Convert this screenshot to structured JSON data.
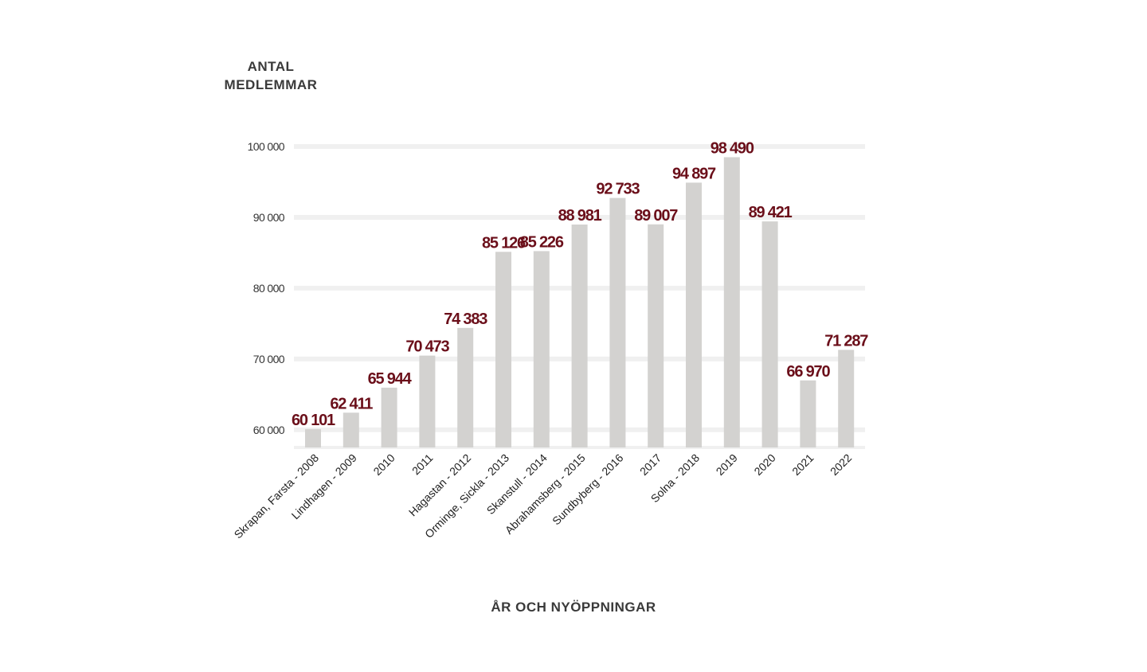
{
  "chart_data": {
    "type": "bar",
    "ylabel_lines": [
      "ANTAL",
      "MEDLEMMAR"
    ],
    "xlabel": "ÅR OCH NYÖPPNINGAR",
    "categories": [
      "Skrapan, Farsta - 2008",
      "Lindhagen - 2009",
      "2010",
      "2011",
      "Hagastan - 2012",
      "Orminge, Sickla - 2013",
      "Skanstull - 2014",
      "Abrahamsberg - 2015",
      "Sundbyberg - 2016",
      "2017",
      "Solna - 2018",
      "2019",
      "2020",
      "2021",
      "2022"
    ],
    "values": [
      60101,
      62411,
      65944,
      70473,
      74383,
      85126,
      85226,
      88981,
      92733,
      89007,
      94897,
      98490,
      89421,
      66970,
      71287
    ],
    "data_labels": [
      "60 101",
      "62 411",
      "65 944",
      "70 473",
      "74 383",
      "85 126",
      "85 226",
      "88 981",
      "92 733",
      "89 007",
      "94 897",
      "98 490",
      "89 421",
      "66 970",
      "71 287"
    ],
    "yticks": [
      60000,
      70000,
      80000,
      90000,
      100000
    ],
    "ytick_labels": [
      "60 000",
      "70 000",
      "80 000",
      "90 000",
      "100 000"
    ],
    "ylim": [
      57500,
      100000
    ],
    "grid": true,
    "colors": {
      "bar": "#d3d2d0",
      "label": "#6b0f1a",
      "grid": "#f0f0f0"
    }
  }
}
